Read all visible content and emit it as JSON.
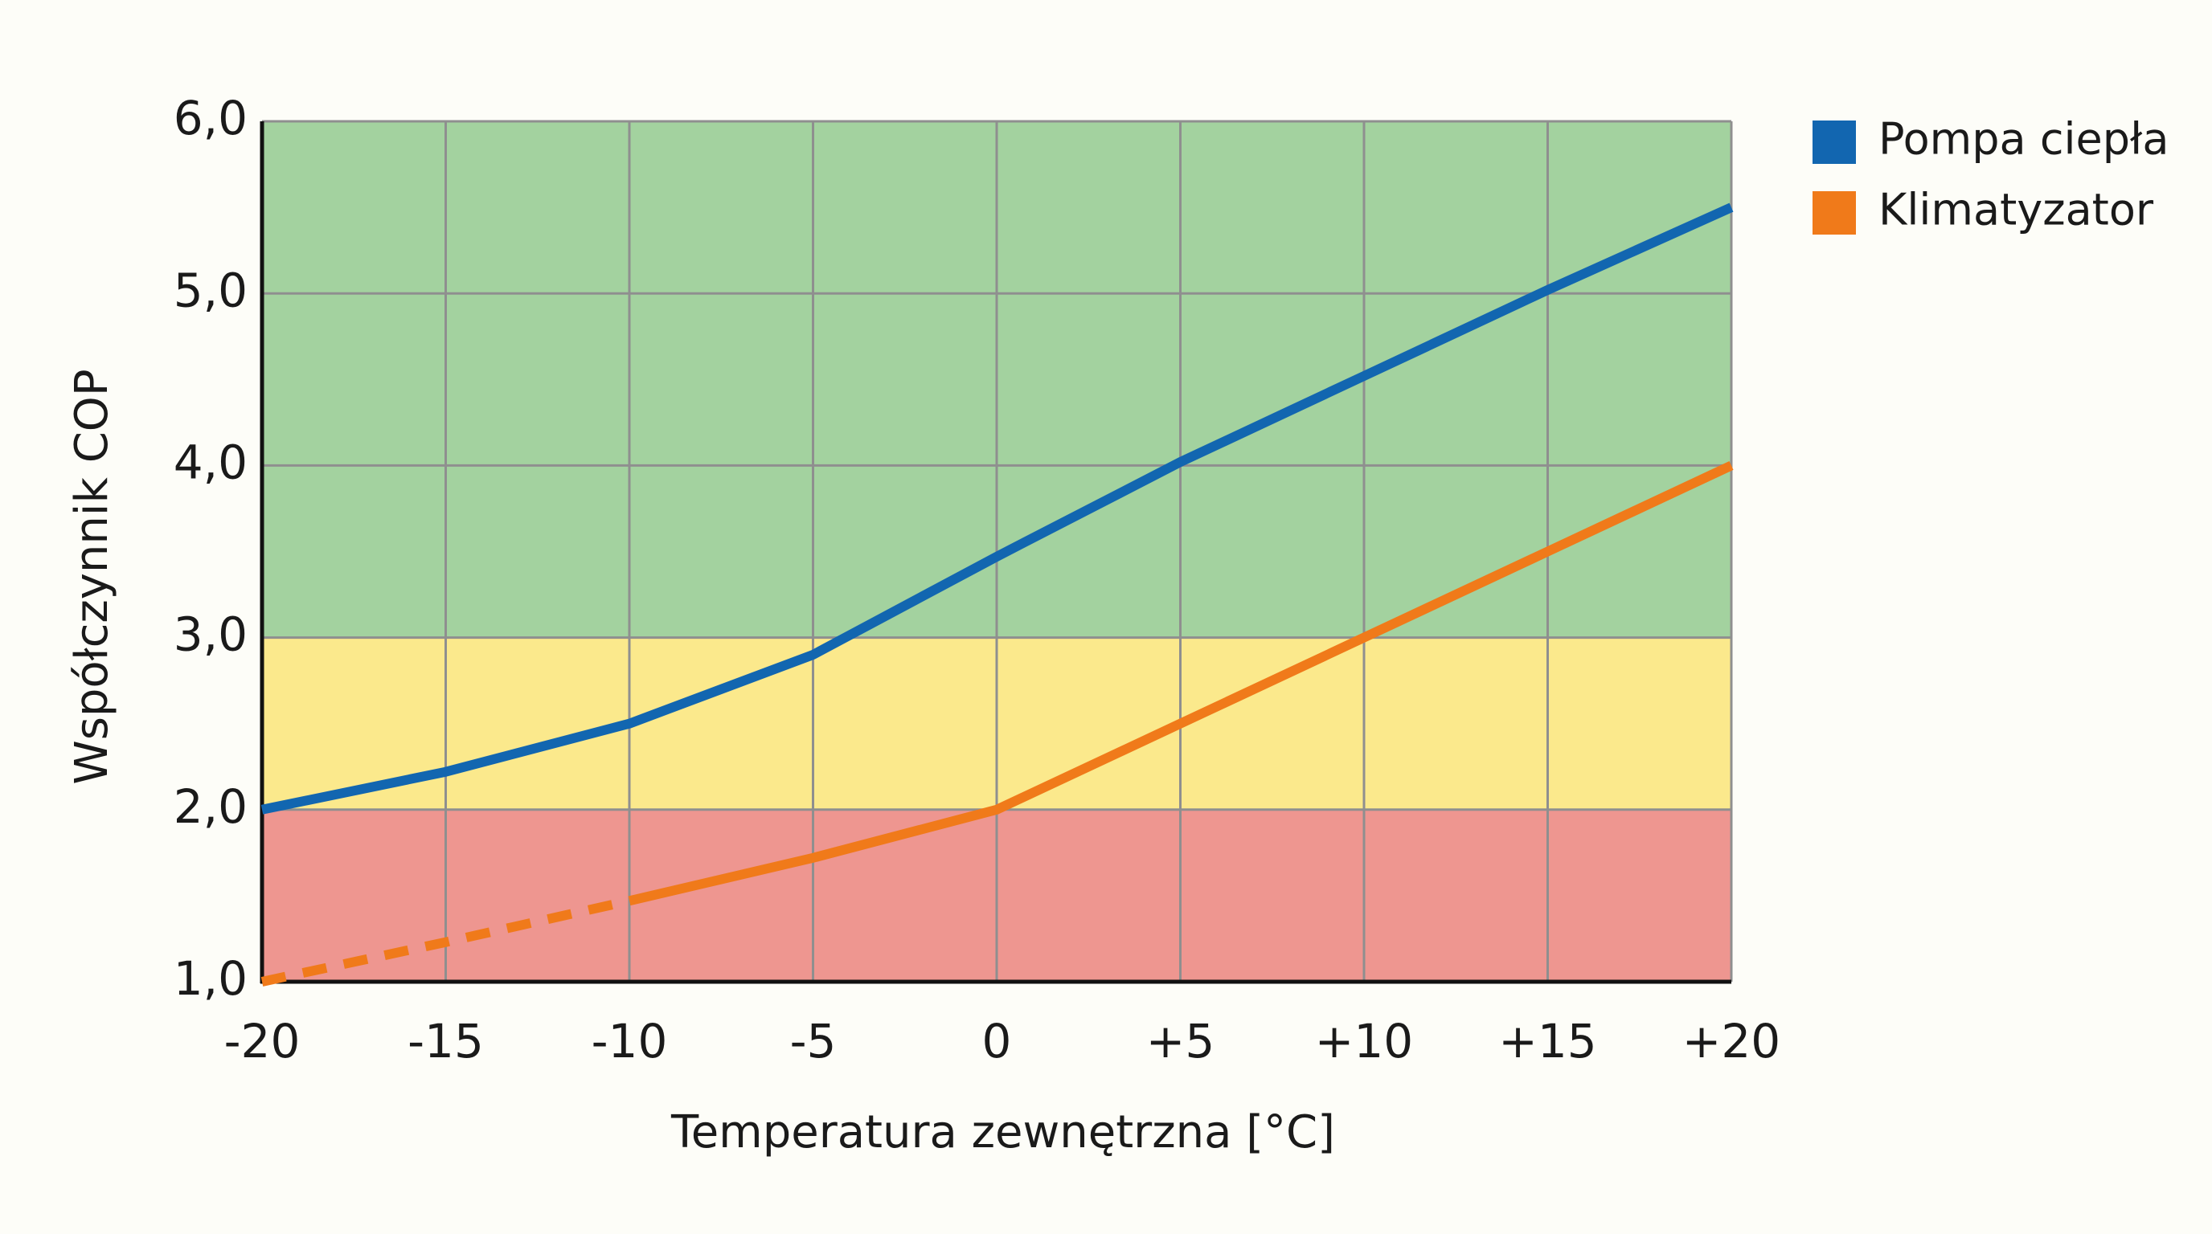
{
  "chart_data": {
    "type": "line",
    "x_label": "Temperatura zewnętrzna [°C]",
    "y_label": "Współczynnik COP",
    "x": [
      -20,
      -15,
      -10,
      -5,
      0,
      5,
      10,
      15,
      20
    ],
    "series": [
      {
        "name": "Pompa ciepła",
        "color": "#1266b0",
        "values": [
          2.0,
          2.22,
          2.5,
          2.9,
          3.47,
          4.02,
          4.52,
          5.02,
          5.5
        ],
        "segment_styles": [
          "solid",
          "solid",
          "solid",
          "solid",
          "solid",
          "solid",
          "solid",
          "solid"
        ]
      },
      {
        "name": "Klimatyzator",
        "color": "#f07a1a",
        "values": [
          1.0,
          1.23,
          1.47,
          1.72,
          2.0,
          2.5,
          3.0,
          3.5,
          4.0
        ],
        "segment_styles": [
          "dashed",
          "dashed",
          "solid",
          "solid",
          "solid",
          "solid",
          "solid",
          "solid"
        ]
      }
    ],
    "bands": [
      {
        "from": 1,
        "to": 2,
        "color": "#ee9690"
      },
      {
        "from": 2,
        "to": 3,
        "color": "#fbe98c"
      },
      {
        "from": 3,
        "to": 6,
        "color": "#a3d29f"
      }
    ],
    "xlim": [
      -20,
      20
    ],
    "ylim": [
      1,
      6
    ],
    "xticks": [
      -20,
      -15,
      -10,
      -5,
      0,
      {
        "value": 5,
        "label": "+5"
      },
      {
        "value": 10,
        "label": "+10"
      },
      {
        "value": 15,
        "label": "+15"
      },
      {
        "value": 20,
        "label": "+20"
      }
    ],
    "yticks": [
      {
        "value": 1,
        "label": "1,0"
      },
      {
        "value": 2,
        "label": "2,0"
      },
      {
        "value": 3,
        "label": "3,0"
      },
      {
        "value": 4,
        "label": "4,0"
      },
      {
        "value": 5,
        "label": "5,0"
      },
      {
        "value": 6,
        "label": "6,0"
      }
    ],
    "grid": true,
    "legend": "right"
  }
}
